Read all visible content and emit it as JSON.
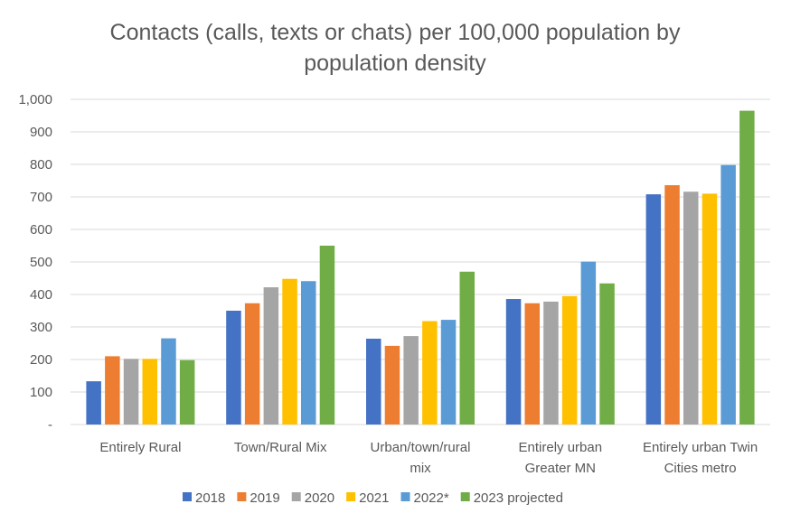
{
  "chart_data": {
    "type": "bar",
    "title_lines": [
      "Contacts (calls, texts or chats) per 100,000 population by",
      "population density"
    ],
    "categories": [
      [
        "Entirely Rural"
      ],
      [
        "Town/Rural Mix"
      ],
      [
        "Urban/town/rural",
        "mix"
      ],
      [
        "Entirely urban",
        "Greater MN"
      ],
      [
        "Entirely urban Twin",
        "Cities metro"
      ]
    ],
    "ylim": [
      0,
      1000
    ],
    "y_ticks": [
      0,
      100,
      200,
      300,
      400,
      500,
      600,
      700,
      800,
      900,
      1000
    ],
    "y_tick_labels": [
      "-",
      "100",
      "200",
      "300",
      "400",
      "500",
      "600",
      "700",
      "800",
      "900",
      "1,000"
    ],
    "grid": true,
    "legend_position": "bottom",
    "series": [
      {
        "name": "2018",
        "color": "#4472c4",
        "values": [
          133,
          350,
          264,
          386,
          708
        ]
      },
      {
        "name": "2019",
        "color": "#ed7d31",
        "values": [
          210,
          373,
          242,
          373,
          736
        ]
      },
      {
        "name": "2020",
        "color": "#a5a5a5",
        "values": [
          202,
          422,
          272,
          378,
          716
        ]
      },
      {
        "name": "2021",
        "color": "#ffc000",
        "values": [
          202,
          448,
          318,
          395,
          710
        ]
      },
      {
        "name": "2022*",
        "color": "#5b9bd5",
        "values": [
          265,
          441,
          322,
          501,
          798
        ]
      },
      {
        "name": "2023 projected",
        "color": "#70ad47",
        "values": [
          198,
          550,
          470,
          434,
          965
        ]
      }
    ]
  }
}
